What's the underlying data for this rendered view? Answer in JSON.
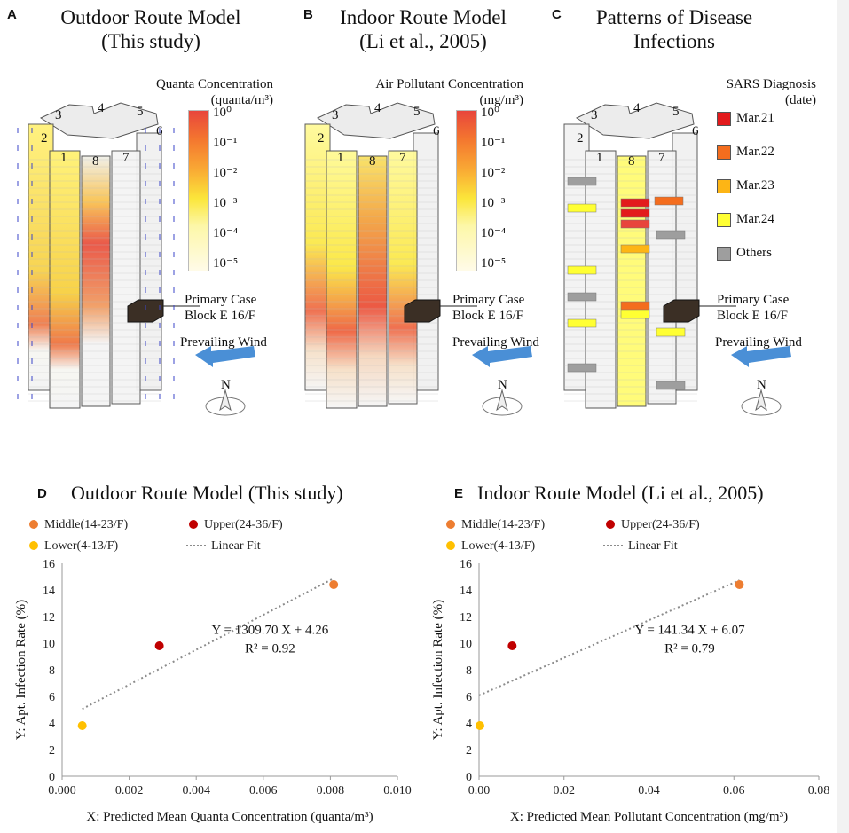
{
  "panels": {
    "a": {
      "letter": "A",
      "title_l1": "Outdoor Route Model",
      "title_l2": "(This study)",
      "colorbar_title": "Quanta Concentration",
      "colorbar_unit": "(quanta/m³)"
    },
    "b": {
      "letter": "B",
      "title_l1": "Indoor Route Model",
      "title_l2": "(Li et al., 2005)",
      "colorbar_title": "Air Pollutant Concentration",
      "colorbar_unit": "(mg/m³)"
    },
    "c": {
      "letter": "C",
      "title_l1": "Patterns of Disease",
      "title_l2": "Infections",
      "legend_title": "SARS  Diagnosis",
      "legend_unit": "(date)",
      "legend": [
        {
          "label": "Mar.21",
          "color": "#e31a1c"
        },
        {
          "label": "Mar.22",
          "color": "#f46d1e"
        },
        {
          "label": "Mar.23",
          "color": "#fdb515"
        },
        {
          "label": "Mar.24",
          "color": "#ffff33"
        },
        {
          "label": "Others",
          "color": "#9e9e9e"
        }
      ]
    }
  },
  "colorbar_ticks": [
    "10⁰",
    "10⁻¹",
    "10⁻²",
    "10⁻³",
    "10⁻⁴",
    "10⁻⁵"
  ],
  "building_blocks": [
    "3",
    "4",
    "5",
    "2",
    "6",
    "1",
    "8",
    "7"
  ],
  "annotations": {
    "primary_l1": "Primary Case",
    "primary_l2": "Block E 16/F",
    "wind": "Prevailing Wind",
    "north": "N"
  },
  "colors": {
    "middle": "#ed7d31",
    "upper": "#c00000",
    "lower": "#ffc000",
    "fit": "#8c8c8c",
    "arrow": "#4a90d9"
  },
  "chart_data": [
    {
      "type": "scatter",
      "letter": "D",
      "title": "Outdoor Route Model (This study)",
      "xlabel": "X: Predicted Mean Quanta Concentration  (quanta/m³)",
      "ylabel": "Y: Apt. Infection Rate (%)",
      "xlim": [
        0,
        0.01
      ],
      "ylim": [
        0,
        16
      ],
      "xticks": [
        0,
        0.002,
        0.004,
        0.006,
        0.008,
        0.01
      ],
      "xtick_labels": [
        "0.000",
        "0.002",
        "0.004",
        "0.006",
        "0.008",
        "0.010"
      ],
      "yticks": [
        0,
        2,
        4,
        6,
        8,
        10,
        12,
        14,
        16
      ],
      "yticks_labels": [
        "0",
        "2",
        "4",
        "6",
        "8",
        "10",
        "12",
        "14",
        "16"
      ],
      "series": [
        {
          "name": "Middle(14-23/F)",
          "x": 0.0081,
          "y": 14.4,
          "color": "#ed7d31"
        },
        {
          "name": "Upper(24-36/F)",
          "x": 0.0029,
          "y": 9.8,
          "color": "#c00000"
        },
        {
          "name": "Lower(4-13/F)",
          "x": 0.0006,
          "y": 3.8,
          "color": "#ffc000"
        }
      ],
      "fit": {
        "name": "Linear Fit",
        "x0": 0.0006,
        "y0": 5.05,
        "x1": 0.0081,
        "y1": 14.87
      },
      "equation": "Y = 1309.70 X + 4.26",
      "r2": "R² = 0.92"
    },
    {
      "type": "scatter",
      "letter": "E",
      "title": "Indoor Route Model (Li et al., 2005)",
      "xlabel": "X: Predicted Mean Pollutant Concentration (mg/m³)",
      "ylabel": "Y: Apt. Infection Rate (%)",
      "xlim": [
        0,
        0.08
      ],
      "ylim": [
        0,
        16
      ],
      "xticks": [
        0,
        0.02,
        0.04,
        0.06,
        0.08
      ],
      "xtick_labels": [
        "0.00",
        "0.02",
        "0.04",
        "0.06",
        "0.08"
      ],
      "yticks": [
        0,
        2,
        4,
        6,
        8,
        10,
        12,
        14,
        16
      ],
      "yticks_labels": [
        "0",
        "2",
        "4",
        "6",
        "8",
        "10",
        "12",
        "14",
        "16"
      ],
      "series": [
        {
          "name": "Middle(14-23/F)",
          "x": 0.0613,
          "y": 14.4,
          "color": "#ed7d31"
        },
        {
          "name": "Upper(24-36/F)",
          "x": 0.0078,
          "y": 9.8,
          "color": "#c00000"
        },
        {
          "name": "Lower(4-13/F)",
          "x": 0.0002,
          "y": 3.8,
          "color": "#ffc000"
        }
      ],
      "fit": {
        "name": "Linear Fit",
        "x0": 0,
        "y0": 6.07,
        "x1": 0.0613,
        "y1": 14.73
      },
      "equation": "Y = 141.34 X + 6.07",
      "r2": "R² = 0.79"
    }
  ]
}
